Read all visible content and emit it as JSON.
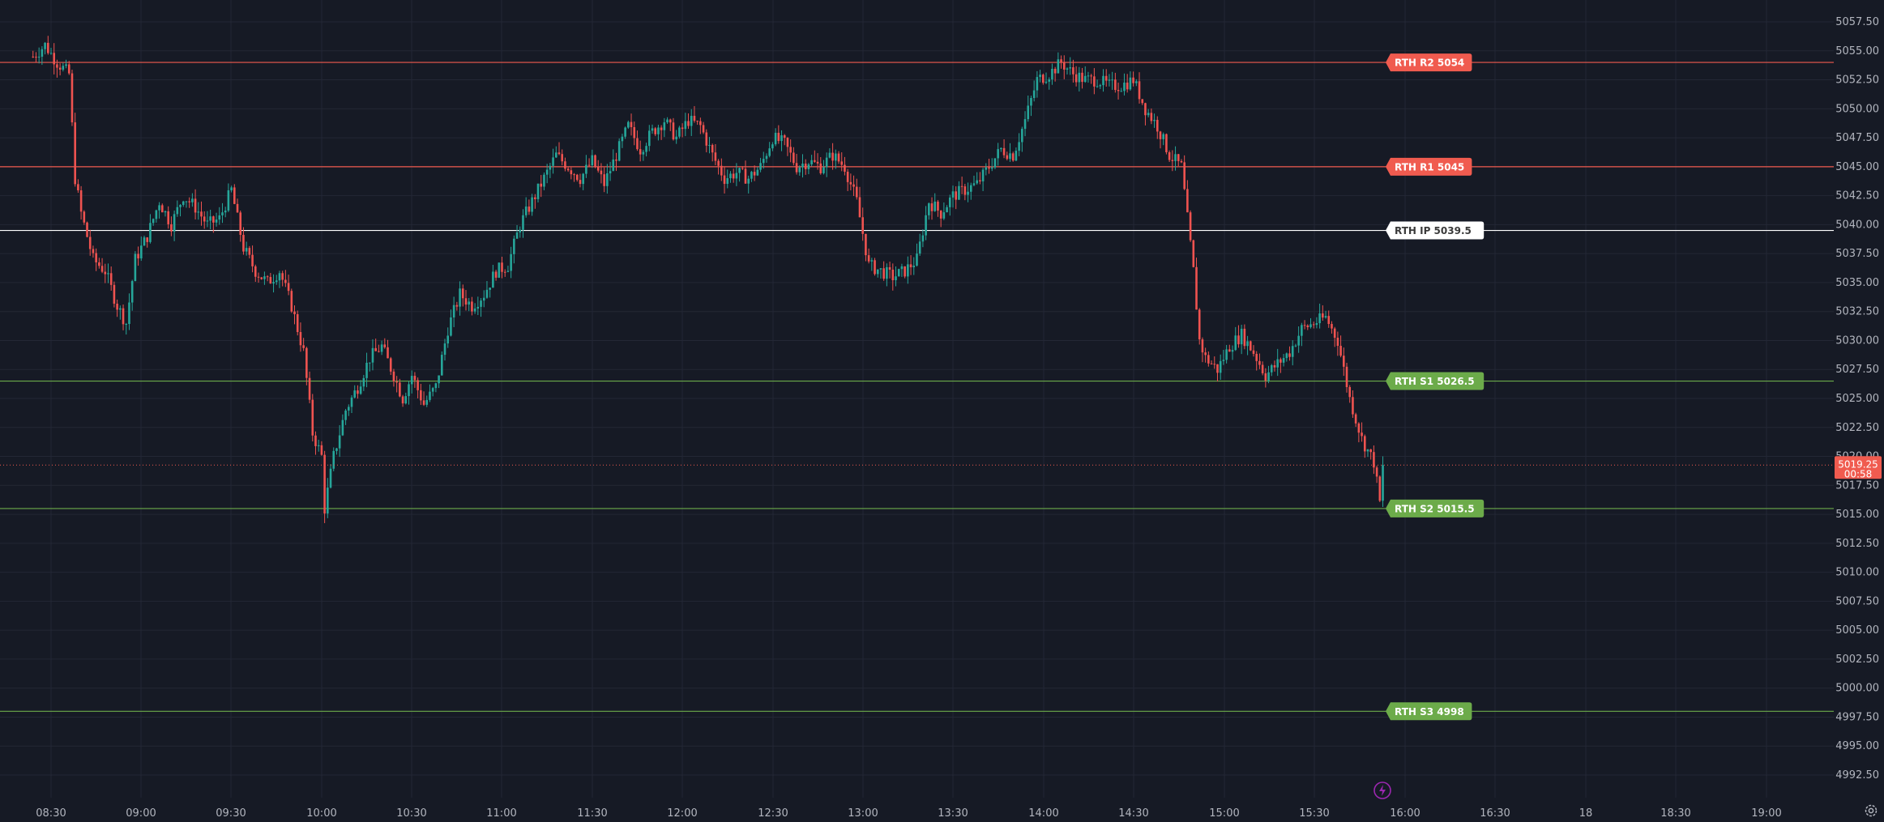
{
  "chart_data": {
    "type": "candlestick",
    "instrument_unit": "price",
    "y_axis": {
      "range": [
        4990.5,
        5059.5
      ],
      "ticks": [
        "5057.50",
        "5055.00",
        "5052.50",
        "5050.00",
        "5047.50",
        "5045.00",
        "5042.50",
        "5040.00",
        "5037.50",
        "5035.00",
        "5032.50",
        "5030.00",
        "5027.50",
        "5025.00",
        "5022.50",
        "5020.00",
        "5017.50",
        "5015.00",
        "5012.50",
        "5010.00",
        "5007.50",
        "5005.00",
        "5002.50",
        "5000.00",
        "4997.50",
        "4995.00",
        "4992.50"
      ]
    },
    "x_axis": {
      "ticks": [
        "08:30",
        "09:00",
        "09:30",
        "10:00",
        "10:30",
        "11:00",
        "11:30",
        "12:00",
        "12:30",
        "13:00",
        "13:30",
        "14:00",
        "14:30",
        "15:00",
        "15:30",
        "16:00",
        "16:30",
        "18",
        "18:30",
        "19:00"
      ]
    },
    "grid": true,
    "levels": [
      {
        "label": "RTH R2 5054",
        "price": 5054,
        "color": "#f05b4f",
        "text_color": "#ffffff"
      },
      {
        "label": "RTH R1 5045",
        "price": 5045,
        "color": "#f05b4f",
        "text_color": "#ffffff"
      },
      {
        "label": "RTH IP 5039.5",
        "price": 5039.5,
        "color": "#ffffff",
        "text_color": "#3a3a3a"
      },
      {
        "label": "RTH S1 5026.5",
        "price": 5026.5,
        "color": "#6cab4a",
        "text_color": "#ffffff"
      },
      {
        "label": "RTH S2 5015.5",
        "price": 5015.5,
        "color": "#6cab4a",
        "text_color": "#ffffff"
      },
      {
        "label": "RTH S3 4998",
        "price": 4998,
        "color": "#6cab4a",
        "text_color": "#ffffff"
      }
    ],
    "current_price": {
      "price": 5019.25,
      "label": "5019.25",
      "countdown": "00:58",
      "color": "#f05b4f"
    },
    "up_color": "#26a69a",
    "down_color": "#ef5350",
    "close_path": [
      [
        "08:24",
        5054.5
      ],
      [
        "08:28",
        5055.5
      ],
      [
        "08:32",
        5054
      ],
      [
        "08:36",
        5053
      ],
      [
        "08:38",
        5044
      ],
      [
        "08:40",
        5041
      ],
      [
        "08:44",
        5037
      ],
      [
        "08:48",
        5036
      ],
      [
        "08:52",
        5033
      ],
      [
        "08:55",
        5031.5
      ],
      [
        "08:58",
        5037
      ],
      [
        "09:02",
        5039
      ],
      [
        "09:06",
        5042
      ],
      [
        "09:10",
        5040
      ],
      [
        "09:14",
        5042.5
      ],
      [
        "09:18",
        5041.5
      ],
      [
        "09:22",
        5040
      ],
      [
        "09:26",
        5040.5
      ],
      [
        "09:30",
        5043
      ],
      [
        "09:34",
        5038
      ],
      [
        "09:38",
        5036
      ],
      [
        "09:42",
        5035
      ],
      [
        "09:46",
        5036
      ],
      [
        "09:50",
        5033
      ],
      [
        "09:54",
        5029
      ],
      [
        "09:57",
        5022
      ],
      [
        "10:00",
        5020
      ],
      [
        "10:01",
        5015.5
      ],
      [
        "10:04",
        5020
      ],
      [
        "10:08",
        5024
      ],
      [
        "10:12",
        5026
      ],
      [
        "10:16",
        5028.5
      ],
      [
        "10:20",
        5029.5
      ],
      [
        "10:24",
        5027
      ],
      [
        "10:27",
        5025
      ],
      [
        "10:30",
        5027
      ],
      [
        "10:34",
        5024.5
      ],
      [
        "10:38",
        5026
      ],
      [
        "10:42",
        5031
      ],
      [
        "10:46",
        5034
      ],
      [
        "10:50",
        5033
      ],
      [
        "10:54",
        5034
      ],
      [
        "10:58",
        5036
      ],
      [
        "11:02",
        5036.5
      ],
      [
        "11:06",
        5040
      ],
      [
        "11:10",
        5042
      ],
      [
        "11:14",
        5044
      ],
      [
        "11:18",
        5046
      ],
      [
        "11:22",
        5045
      ],
      [
        "11:26",
        5044
      ],
      [
        "11:30",
        5045.5
      ],
      [
        "11:34",
        5043.5
      ],
      [
        "11:38",
        5046
      ],
      [
        "11:42",
        5048.5
      ],
      [
        "11:46",
        5046.5
      ],
      [
        "11:50",
        5048
      ],
      [
        "11:54",
        5049
      ],
      [
        "11:58",
        5047.5
      ],
      [
        "12:02",
        5049
      ],
      [
        "12:06",
        5048.5
      ],
      [
        "12:10",
        5046
      ],
      [
        "12:14",
        5044
      ],
      [
        "12:18",
        5044.5
      ],
      [
        "12:22",
        5044
      ],
      [
        "12:26",
        5045
      ],
      [
        "12:30",
        5047.5
      ],
      [
        "12:34",
        5047
      ],
      [
        "12:38",
        5045
      ],
      [
        "12:42",
        5045.5
      ],
      [
        "12:46",
        5045
      ],
      [
        "12:50",
        5046
      ],
      [
        "12:54",
        5045
      ],
      [
        "12:58",
        5042
      ],
      [
        "13:02",
        5036.5
      ],
      [
        "13:06",
        5036
      ],
      [
        "13:10",
        5035.5
      ],
      [
        "13:14",
        5036
      ],
      [
        "13:18",
        5037
      ],
      [
        "13:22",
        5042
      ],
      [
        "13:26",
        5041
      ],
      [
        "13:30",
        5042.5
      ],
      [
        "13:34",
        5043
      ],
      [
        "13:38",
        5043.5
      ],
      [
        "13:42",
        5045
      ],
      [
        "13:46",
        5046.5
      ],
      [
        "13:50",
        5046
      ],
      [
        "13:54",
        5049
      ],
      [
        "13:58",
        5052.5
      ],
      [
        "14:02",
        5053
      ],
      [
        "14:06",
        5054
      ],
      [
        "14:10",
        5053
      ],
      [
        "14:14",
        5052.5
      ],
      [
        "14:18",
        5052.5
      ],
      [
        "14:22",
        5052
      ],
      [
        "14:26",
        5052
      ],
      [
        "14:30",
        5052.5
      ],
      [
        "14:34",
        5050
      ],
      [
        "14:38",
        5048.5
      ],
      [
        "14:42",
        5046
      ],
      [
        "14:46",
        5045
      ],
      [
        "14:48",
        5040.5
      ],
      [
        "14:50",
        5036
      ],
      [
        "14:52",
        5030
      ],
      [
        "14:54",
        5028.5
      ],
      [
        "14:58",
        5027.5
      ],
      [
        "15:02",
        5029.5
      ],
      [
        "15:06",
        5030.5
      ],
      [
        "15:10",
        5029
      ],
      [
        "15:14",
        5027
      ],
      [
        "15:18",
        5028
      ],
      [
        "15:22",
        5029
      ],
      [
        "15:26",
        5031
      ],
      [
        "15:30",
        5031.5
      ],
      [
        "15:34",
        5032
      ],
      [
        "15:38",
        5030
      ],
      [
        "15:42",
        5025
      ],
      [
        "15:46",
        5021.5
      ],
      [
        "15:50",
        5019.5
      ],
      [
        "15:52",
        5016
      ],
      [
        "15:54",
        5019.25
      ]
    ]
  },
  "icons": {
    "flash": "flash-icon",
    "settings": "gear-icon"
  }
}
